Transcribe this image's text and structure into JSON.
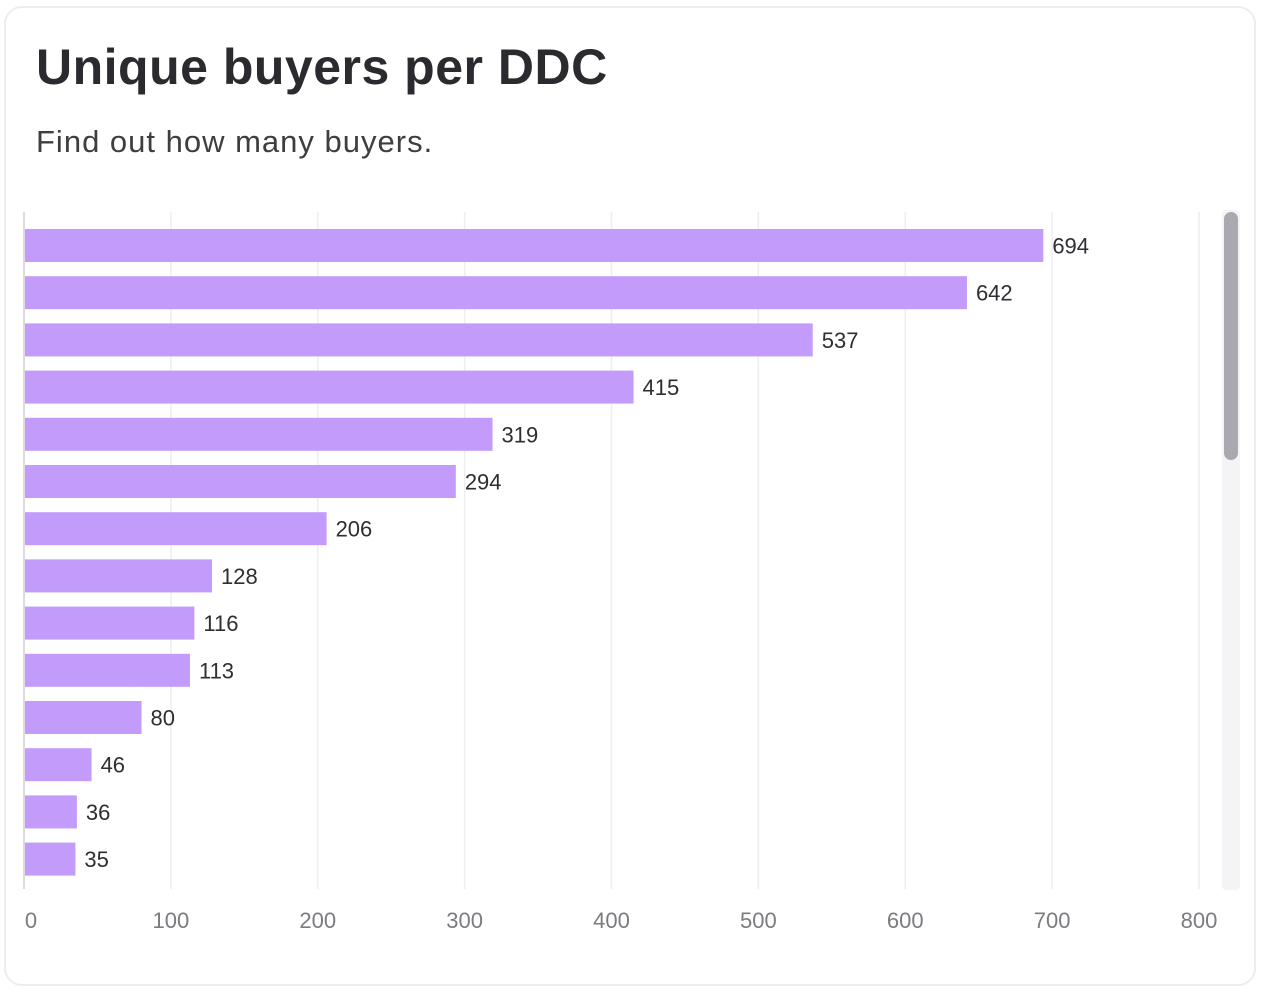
{
  "card": {
    "title": "Unique buyers per DDC",
    "subtitle": "Find out how many buyers."
  },
  "colors": {
    "bar": "#c39bfa",
    "grid": "#eeeef1",
    "scrollbar_thumb": "#a9a9b2"
  },
  "chart_data": {
    "type": "bar",
    "orientation": "horizontal",
    "title": "Unique buyers per DDC",
    "subtitle": "Find out how many buyers.",
    "values": [
      694,
      642,
      537,
      415,
      319,
      294,
      206,
      128,
      116,
      113,
      80,
      46,
      36,
      35,
      33
    ],
    "value_labels": [
      "694",
      "642",
      "537",
      "415",
      "319",
      "294",
      "206",
      "128",
      "116",
      "113",
      "80",
      "46",
      "36",
      "35",
      ""
    ],
    "xlim": [
      0,
      800
    ],
    "xticks": [
      0,
      100,
      200,
      300,
      400,
      500,
      600,
      700,
      800
    ],
    "xtick_labels": [
      "0",
      "100",
      "200",
      "300",
      "400",
      "500",
      "600",
      "700",
      "800"
    ],
    "grid": "vertical",
    "xlabel": "",
    "ylabel": ""
  }
}
